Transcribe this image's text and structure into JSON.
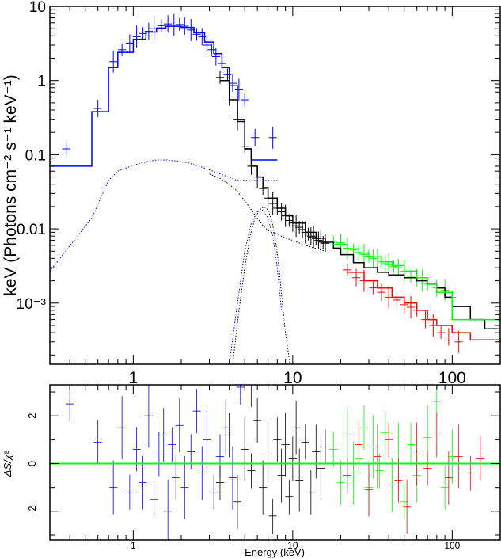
{
  "chart_data": [
    {
      "type": "line",
      "panel": "spectrum",
      "title": "",
      "xlabel": "",
      "ylabel": "keV (Photons cm⁻² s⁻¹ keV⁻¹)",
      "xscale": "log",
      "yscale": "log",
      "xlim": [
        0.3,
        200
      ],
      "ylim": [
        0.00015,
        10
      ],
      "x_tick_labels": [
        {
          "value": 1,
          "label": "1"
        },
        {
          "value": 10,
          "label": "10"
        },
        {
          "value": 100,
          "label": "100"
        }
      ],
      "y_tick_labels": [
        {
          "value": 10,
          "label": "10"
        },
        {
          "value": 1,
          "label": "1"
        },
        {
          "value": 0.1,
          "label": "0.1"
        },
        {
          "value": 0.01,
          "label": "0.01"
        },
        {
          "value": 0.001,
          "label": "10⁻³"
        }
      ],
      "series": [
        {
          "color": "#0000ff",
          "style": "crosses",
          "x": [
            0.38,
            0.6,
            0.75,
            0.85,
            0.95,
            1.05,
            1.15,
            1.25,
            1.35,
            1.5,
            1.65,
            1.8,
            1.95,
            2.1,
            2.3,
            2.5,
            2.7,
            2.9,
            3.1,
            3.3,
            3.6,
            3.9,
            4.2,
            4.6,
            5.0,
            5.8,
            7.5
          ],
          "y": [
            0.12,
            0.42,
            1.8,
            2.6,
            3.2,
            3.9,
            4.3,
            4.6,
            5.0,
            5.5,
            5.8,
            5.6,
            5.7,
            5.4,
            4.8,
            4.2,
            3.9,
            3.0,
            2.6,
            2.1,
            1.7,
            1.2,
            0.92,
            0.75,
            0.55,
            0.17,
            0.17
          ]
        },
        {
          "color": "#000000",
          "style": "crosses",
          "x": [
            3.5,
            4.0,
            4.5,
            5.0,
            5.5,
            6.0,
            6.5,
            7.0,
            7.5,
            8.0,
            8.5,
            9.0,
            9.5,
            10,
            10.5,
            11,
            11.5,
            12,
            12.5,
            13,
            13.5,
            14,
            14.5,
            15,
            15.5,
            16
          ],
          "y": [
            1.1,
            0.6,
            0.3,
            0.13,
            0.07,
            0.05,
            0.035,
            0.026,
            0.022,
            0.019,
            0.017,
            0.015,
            0.013,
            0.012,
            0.011,
            0.0105,
            0.0098,
            0.009,
            0.0085,
            0.008,
            0.0078,
            0.0074,
            0.007,
            0.0068,
            0.0066,
            0.0064
          ]
        },
        {
          "color": "#00ff00",
          "style": "crosses",
          "x": [
            18,
            20,
            22,
            24,
            26,
            28,
            30,
            32,
            34,
            36,
            38,
            40,
            43,
            46,
            50,
            55,
            60,
            65,
            70,
            80,
            90,
            100
          ],
          "y": [
            0.0066,
            0.0065,
            0.0055,
            0.0052,
            0.0048,
            0.0045,
            0.0043,
            0.004,
            0.0038,
            0.0036,
            0.0034,
            0.0033,
            0.0031,
            0.003,
            0.0027,
            0.0023,
            0.0022,
            0.002,
            0.0018,
            0.0016,
            0.0015,
            0.0012
          ]
        },
        {
          "color": "#ff0000",
          "style": "crosses",
          "x": [
            22,
            25,
            28,
            32,
            36,
            40,
            45,
            50,
            55,
            60,
            68,
            76,
            85,
            95,
            110
          ],
          "y": [
            0.0028,
            0.0022,
            0.002,
            0.0016,
            0.0014,
            0.0012,
            0.0011,
            0.00095,
            0.00088,
            0.0008,
            0.0006,
            0.0005,
            0.0004,
            0.00035,
            0.0003
          ]
        },
        {
          "color": "#0000ff",
          "style": "step-model",
          "x": [
            0.3,
            0.55,
            0.7,
            0.8,
            1.0,
            1.2,
            1.4,
            1.6,
            1.8,
            2.0,
            2.4,
            2.8,
            3.2,
            3.6,
            4.0,
            4.5,
            5.0,
            5.5,
            8.0
          ],
          "y": [
            0.07,
            0.38,
            1.5,
            2.4,
            3.6,
            4.5,
            5.1,
            5.4,
            5.4,
            5.2,
            4.4,
            3.3,
            2.3,
            1.5,
            0.85,
            0.3,
            0.12,
            0.085,
            0.085
          ]
        },
        {
          "color": "#000000",
          "style": "step-model",
          "x": [
            3.5,
            4.0,
            4.5,
            5.0,
            5.5,
            6.0,
            6.5,
            7.0,
            8.0,
            9.0,
            10,
            12,
            14,
            16,
            18,
            20,
            24,
            28,
            34,
            40,
            50,
            60,
            70,
            80,
            90,
            100,
            130,
            160,
            200
          ],
          "y": [
            1.0,
            0.55,
            0.28,
            0.12,
            0.07,
            0.05,
            0.036,
            0.026,
            0.019,
            0.015,
            0.012,
            0.009,
            0.0075,
            0.0066,
            0.0055,
            0.0045,
            0.0035,
            0.003,
            0.0026,
            0.0024,
            0.0022,
            0.002,
            0.0018,
            0.0016,
            0.0012,
            0.0009,
            0.0006,
            0.00045,
            0.00045
          ]
        },
        {
          "color": "#00ff00",
          "style": "step-model",
          "x": [
            18,
            22,
            26,
            30,
            36,
            42,
            50,
            60,
            70,
            80,
            100,
            200
          ],
          "y": [
            0.0062,
            0.0054,
            0.0047,
            0.0042,
            0.0036,
            0.0032,
            0.0027,
            0.0022,
            0.0018,
            0.0014,
            0.0006,
            0.00055
          ]
        },
        {
          "color": "#ff0000",
          "style": "step-model",
          "x": [
            22,
            28,
            34,
            42,
            50,
            60,
            70,
            80,
            100,
            130,
            200
          ],
          "y": [
            0.0026,
            0.002,
            0.0016,
            0.0012,
            0.001,
            0.0008,
            0.0006,
            0.0005,
            0.0004,
            0.00032,
            0.0003
          ]
        },
        {
          "color": "#0000ff",
          "style": "dotted-component",
          "x": [
            0.3,
            0.55,
            0.7,
            0.8,
            1.0,
            1.2,
            1.4,
            1.6,
            1.8,
            2.2,
            2.8,
            3.5,
            4.5,
            5.5,
            6.5,
            8.0
          ],
          "y": [
            0.0027,
            0.014,
            0.045,
            0.06,
            0.072,
            0.08,
            0.085,
            0.085,
            0.083,
            0.078,
            0.066,
            0.055,
            0.045,
            0.045,
            0.045,
            0.045
          ]
        },
        {
          "color": "#000000",
          "style": "dotted-component",
          "x": [
            3.0,
            3.5,
            4.0,
            4.5,
            5.0,
            5.5,
            6.0,
            6.5,
            7.0,
            8.0,
            9.0,
            10,
            12,
            16
          ],
          "y": [
            0.055,
            0.048,
            0.04,
            0.032,
            0.024,
            0.018,
            0.014,
            0.011,
            0.0095,
            0.0085,
            0.0075,
            0.007,
            0.006,
            0.005
          ]
        },
        {
          "color": "#000000",
          "style": "dotted-component",
          "x": [
            4.2,
            4.6,
            5.0,
            5.4,
            5.8,
            6.2,
            6.6,
            7.0,
            7.4,
            7.8,
            8.2,
            8.6,
            9.0,
            9.6
          ],
          "y": [
            0.00015,
            0.0008,
            0.003,
            0.008,
            0.014,
            0.018,
            0.02,
            0.018,
            0.013,
            0.007,
            0.003,
            0.001,
            0.0004,
            0.00015
          ]
        },
        {
          "color": "#0000ff",
          "style": "dotted-component",
          "x": [
            4.0,
            4.5,
            5.0,
            5.5,
            6.0,
            6.5,
            7.0,
            7.5,
            8.0,
            8.5
          ],
          "y": [
            0.00015,
            0.001,
            0.005,
            0.012,
            0.017,
            0.018,
            0.014,
            0.008,
            0.003,
            0.0008
          ]
        }
      ]
    },
    {
      "type": "scatter",
      "panel": "residuals",
      "title": "",
      "xlabel": "Energy (keV)",
      "ylabel": "ΔS/χ²",
      "xscale": "log",
      "xlim": [
        0.3,
        200
      ],
      "ylim": [
        -3.2,
        3.3
      ],
      "x_tick_labels": [
        {
          "value": 1,
          "label": "1"
        },
        {
          "value": 10,
          "label": "10"
        },
        {
          "value": 100,
          "label": "100"
        }
      ],
      "y_tick_labels": [
        {
          "value": 2,
          "label": "2"
        },
        {
          "value": 0,
          "label": "0"
        },
        {
          "value": -2,
          "label": "−2"
        }
      ],
      "zero_line_color": "#00ff00",
      "series": [
        {
          "color": "#0000ff",
          "x": [
            0.4,
            0.6,
            0.75,
            0.85,
            0.95,
            1.05,
            1.15,
            1.25,
            1.35,
            1.45,
            1.55,
            1.65,
            1.75,
            1.85,
            1.95,
            2.1,
            2.3,
            2.5,
            2.7,
            2.9,
            3.2,
            3.5,
            3.8,
            4.2,
            4.7,
            5.5
          ],
          "y": [
            2.5,
            0.9,
            -1.0,
            1.5,
            -1.2,
            0.6,
            -0.8,
            2.0,
            -1.5,
            0.4,
            1.2,
            -2.0,
            0.8,
            -0.6,
            1.6,
            -1.0,
            0.5,
            2.2,
            -0.4,
            1.0,
            -1.2,
            0.3,
            1.5,
            -0.6,
            3.2,
            3.3
          ]
        },
        {
          "color": "#000000",
          "x": [
            3.5,
            4.0,
            4.5,
            5.0,
            5.5,
            6.0,
            6.5,
            7.0,
            7.5,
            8.0,
            8.5,
            9.0,
            9.5,
            10,
            10.5,
            11,
            12,
            13,
            14,
            15,
            16
          ],
          "y": [
            -0.8,
            1.2,
            -1.6,
            0.6,
            -0.3,
            1.8,
            -1.0,
            0.4,
            -2.2,
            1.0,
            -0.5,
            0.8,
            -1.4,
            0.2,
            1.5,
            -0.7,
            0.9,
            -1.2,
            0.5,
            -0.2,
            0.7
          ]
        },
        {
          "color": "#00ff00",
          "x": [
            18,
            20,
            22,
            24,
            26,
            28,
            30,
            32,
            35,
            38,
            42,
            46,
            50,
            55,
            60,
            70,
            80,
            90,
            100
          ],
          "y": [
            0.6,
            -0.8,
            1.2,
            -0.4,
            0.2,
            1.5,
            -1.0,
            0.7,
            -0.3,
            1.3,
            -0.9,
            0.4,
            -1.6,
            0.8,
            -0.5,
            1.1,
            2.6,
            -1.0,
            0.3
          ]
        },
        {
          "color": "#ff0000",
          "x": [
            22,
            26,
            30,
            34,
            40,
            46,
            52,
            60,
            70,
            80,
            95,
            110,
            130,
            150
          ],
          "y": [
            -0.5,
            0.8,
            -1.1,
            0.3,
            1.0,
            -0.7,
            -1.8,
            0.4,
            -0.2,
            1.2,
            -0.6,
            0.3,
            -0.4,
            0.2
          ]
        }
      ]
    }
  ]
}
